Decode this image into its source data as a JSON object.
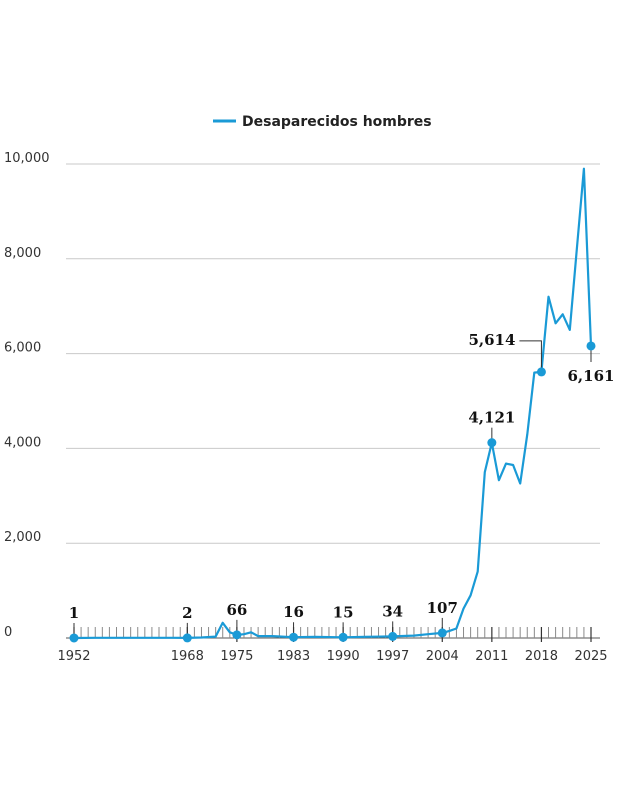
{
  "chart_data": {
    "type": "line",
    "title": "",
    "xlabel": "",
    "ylabel": "",
    "xlim": [
      1952,
      2025
    ],
    "ylim": [
      0,
      10000
    ],
    "grid": true,
    "legend_position": "top-center",
    "y_ticks": [
      0,
      2000,
      4000,
      6000,
      8000,
      10000
    ],
    "y_tick_labels": [
      "0",
      "2,000",
      "4,000",
      "6,000",
      "8,000",
      "10,000"
    ],
    "x_ticks": [
      1952,
      1968,
      1975,
      1983,
      1990,
      1997,
      2004,
      2011,
      2018,
      2025
    ],
    "x_tick_labels": [
      "1952",
      "1968",
      "1975",
      "1983",
      "1990",
      "1997",
      "2004",
      "2011",
      "2018",
      "2025"
    ],
    "series": [
      {
        "name": "Desaparecidos hombres",
        "color": "#1a9ad6",
        "x": [
          1952,
          1955,
          1958,
          1960,
          1962,
          1964,
          1966,
          1968,
          1970,
          1972,
          1973,
          1974,
          1975,
          1976,
          1977,
          1978,
          1980,
          1983,
          1986,
          1990,
          1993,
          1997,
          2000,
          2002,
          2004,
          2005,
          2006,
          2007,
          2008,
          2009,
          2010,
          2011,
          2012,
          2013,
          2014,
          2015,
          2016,
          2017,
          2018,
          2019,
          2020,
          2021,
          2022,
          2023,
          2024,
          2025
        ],
        "values": [
          1,
          5,
          5,
          5,
          5,
          5,
          5,
          2,
          10,
          30,
          320,
          120,
          66,
          80,
          120,
          40,
          40,
          16,
          25,
          15,
          25,
          34,
          50,
          80,
          107,
          150,
          200,
          620,
          900,
          1400,
          3500,
          4121,
          3330,
          3680,
          3650,
          3260,
          4300,
          5600,
          5614,
          7200,
          6640,
          6830,
          6500,
          8200,
          9900,
          6161
        ]
      }
    ],
    "annotations": [
      {
        "x": 1952,
        "y": 1,
        "label": "1"
      },
      {
        "x": 1968,
        "y": 2,
        "label": "2"
      },
      {
        "x": 1975,
        "y": 66,
        "label": "66"
      },
      {
        "x": 1983,
        "y": 16,
        "label": "16"
      },
      {
        "x": 1990,
        "y": 15,
        "label": "15"
      },
      {
        "x": 1997,
        "y": 34,
        "label": "34"
      },
      {
        "x": 2004,
        "y": 107,
        "label": "107"
      },
      {
        "x": 2011,
        "y": 4121,
        "label": "4,121"
      },
      {
        "x": 2018,
        "y": 5614,
        "label": "5,614"
      },
      {
        "x": 2025,
        "y": 6161,
        "label": "6,161"
      }
    ]
  }
}
